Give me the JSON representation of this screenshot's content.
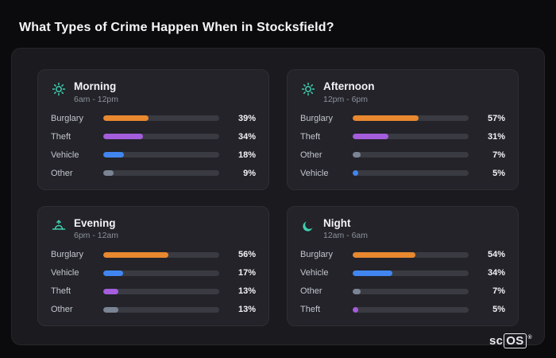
{
  "page": {
    "title": "What Types of Crime Happen When in Stocksfield?"
  },
  "brand": {
    "prefix": "sc",
    "boxed": "OS",
    "reg": "®"
  },
  "theme": {
    "accent_teal": "#3ecfae",
    "bar_track": "#3a3b42",
    "colors": {
      "burglary": "#e8882f",
      "theft": "#a45ddb",
      "vehicle": "#4186f0",
      "other": "#7b8494"
    }
  },
  "chart_data": [
    {
      "type": "bar",
      "title": "Morning",
      "subtitle": "6am - 12pm",
      "icon": "sun-icon",
      "xlim": [
        0,
        100
      ],
      "rows": [
        {
          "category": "Burglary",
          "value": 39,
          "display": "39%",
          "color": "#e8882f"
        },
        {
          "category": "Theft",
          "value": 34,
          "display": "34%",
          "color": "#a45ddb"
        },
        {
          "category": "Vehicle",
          "value": 18,
          "display": "18%",
          "color": "#4186f0"
        },
        {
          "category": "Other",
          "value": 9,
          "display": "9%",
          "color": "#7b8494"
        }
      ]
    },
    {
      "type": "bar",
      "title": "Afternoon",
      "subtitle": "12pm - 6pm",
      "icon": "sun-icon",
      "xlim": [
        0,
        100
      ],
      "rows": [
        {
          "category": "Burglary",
          "value": 57,
          "display": "57%",
          "color": "#e8882f"
        },
        {
          "category": "Theft",
          "value": 31,
          "display": "31%",
          "color": "#a45ddb"
        },
        {
          "category": "Other",
          "value": 7,
          "display": "7%",
          "color": "#7b8494"
        },
        {
          "category": "Vehicle",
          "value": 5,
          "display": "5%",
          "color": "#4186f0"
        }
      ]
    },
    {
      "type": "bar",
      "title": "Evening",
      "subtitle": "6pm - 12am",
      "icon": "sunset-icon",
      "xlim": [
        0,
        100
      ],
      "rows": [
        {
          "category": "Burglary",
          "value": 56,
          "display": "56%",
          "color": "#e8882f"
        },
        {
          "category": "Vehicle",
          "value": 17,
          "display": "17%",
          "color": "#4186f0"
        },
        {
          "category": "Theft",
          "value": 13,
          "display": "13%",
          "color": "#a45ddb"
        },
        {
          "category": "Other",
          "value": 13,
          "display": "13%",
          "color": "#7b8494"
        }
      ]
    },
    {
      "type": "bar",
      "title": "Night",
      "subtitle": "12am - 6am",
      "icon": "moon-icon",
      "xlim": [
        0,
        100
      ],
      "rows": [
        {
          "category": "Burglary",
          "value": 54,
          "display": "54%",
          "color": "#e8882f"
        },
        {
          "category": "Vehicle",
          "value": 34,
          "display": "34%",
          "color": "#4186f0"
        },
        {
          "category": "Other",
          "value": 7,
          "display": "7%",
          "color": "#7b8494"
        },
        {
          "category": "Theft",
          "value": 5,
          "display": "5%",
          "color": "#a45ddb"
        }
      ]
    }
  ]
}
